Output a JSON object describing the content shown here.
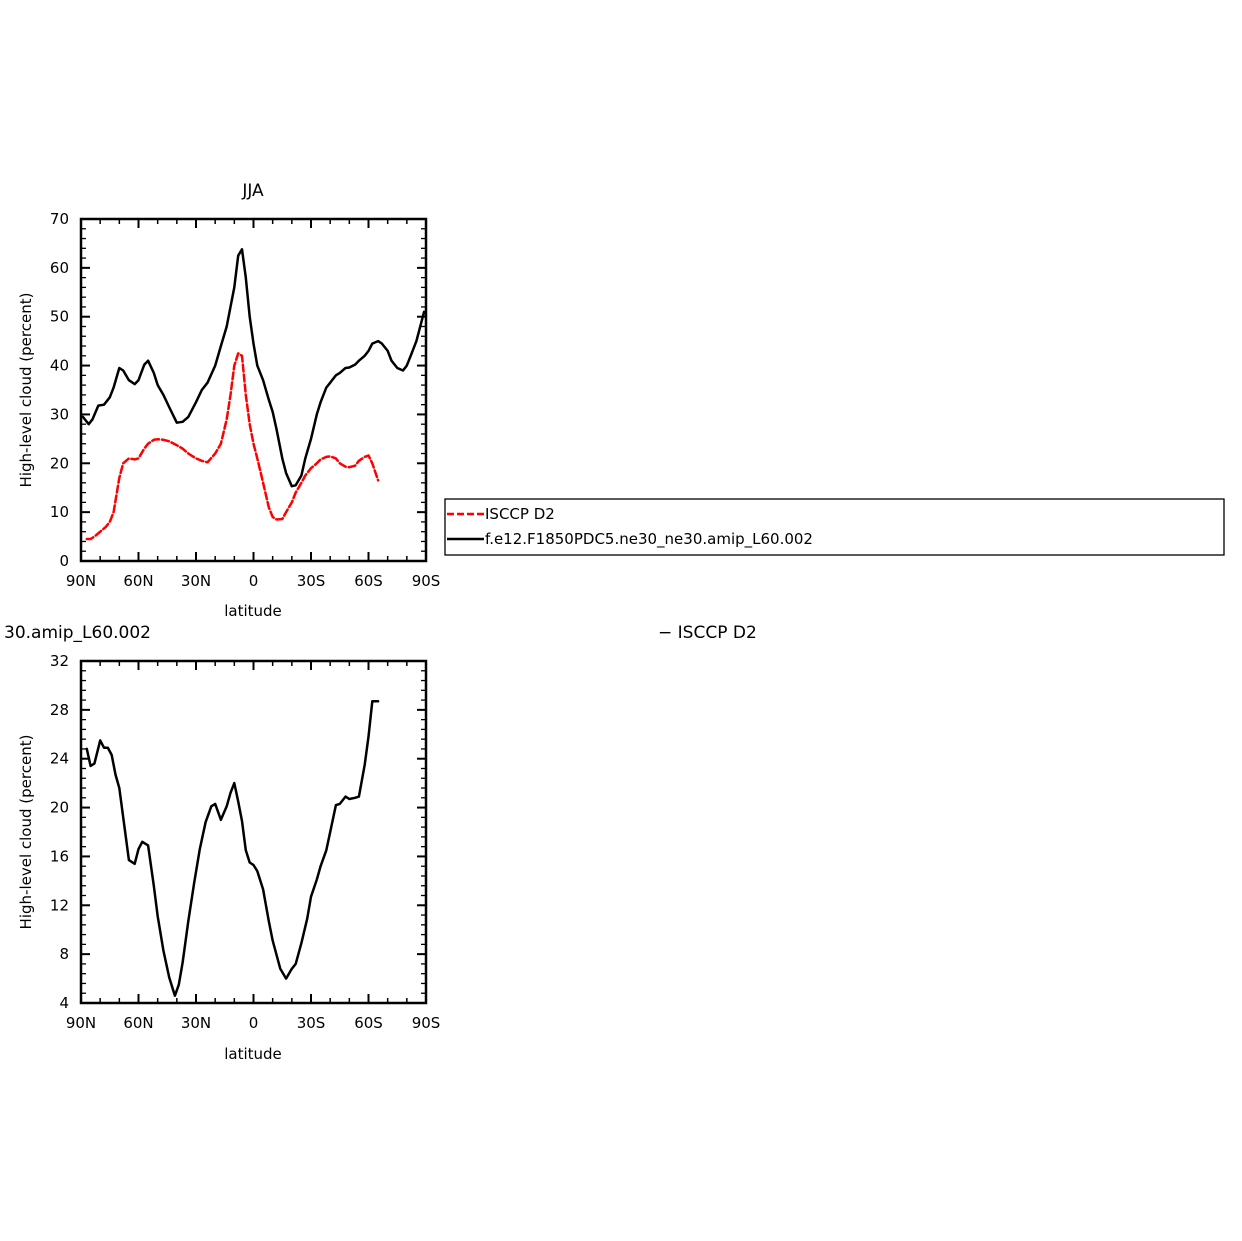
{
  "chart_data": [
    {
      "type": "line",
      "title": "JJA",
      "xlabel": "latitude",
      "ylabel": "High-level cloud (percent)",
      "xlim": [
        90,
        -90
      ],
      "ylim": [
        0,
        70
      ],
      "x_tick_values": [
        90,
        60,
        30,
        0,
        -30,
        -60,
        -90
      ],
      "x_tick_labels": [
        "90N",
        "60N",
        "30N",
        "0",
        "30S",
        "60S",
        "90S"
      ],
      "y_ticks": [
        0,
        10,
        20,
        30,
        40,
        50,
        60,
        70
      ],
      "legend_position": "right",
      "series": [
        {
          "name": "ISCCP D2",
          "color": "#ff0000",
          "style": "dashed",
          "x": [
            87,
            85,
            83,
            80,
            77,
            75,
            73,
            70,
            68,
            65,
            62,
            60,
            57,
            55,
            52,
            50,
            47,
            44,
            40,
            37,
            34,
            30,
            27,
            24,
            20,
            17,
            14,
            12,
            10,
            8,
            6,
            4,
            2,
            0,
            -2,
            -5,
            -8,
            -10,
            -12,
            -15,
            -17,
            -20,
            -22,
            -25,
            -27,
            -30,
            -33,
            -35,
            -38,
            -40,
            -43,
            -45,
            -48,
            -50,
            -53,
            -55,
            -58,
            -60,
            -62,
            -65
          ],
          "y": [
            4.5,
            4.5,
            5.0,
            6.0,
            7.0,
            8.0,
            10.0,
            17.0,
            20.0,
            21.0,
            20.8,
            21.0,
            23.0,
            24.0,
            24.8,
            24.9,
            24.8,
            24.5,
            23.7,
            23.0,
            22.0,
            21.0,
            20.5,
            20.2,
            22.0,
            24.0,
            29.0,
            34.0,
            40.0,
            42.5,
            42.0,
            34.0,
            28.0,
            24.0,
            21.0,
            16.0,
            11.0,
            9.0,
            8.5,
            8.6,
            10.0,
            12.0,
            14.0,
            16.0,
            17.5,
            19.0,
            20.0,
            20.8,
            21.3,
            21.4,
            21.0,
            20.0,
            19.3,
            19.2,
            19.5,
            20.5,
            21.3,
            21.6,
            20.0,
            16.5
          ]
        },
        {
          "name": "f.e12.F1850PDC5.ne30_ne30.amip_L60.002",
          "color": "#000000",
          "style": "solid",
          "x": [
            89,
            86,
            84,
            81,
            78,
            75,
            73,
            70,
            68,
            65,
            62,
            60,
            57,
            55,
            52,
            50,
            47,
            44,
            40,
            37,
            34,
            30,
            27,
            24,
            20,
            17,
            14,
            12,
            10,
            8,
            6,
            4,
            2,
            0,
            -2,
            -5,
            -8,
            -10,
            -12,
            -15,
            -17,
            -20,
            -22,
            -25,
            -27,
            -30,
            -33,
            -35,
            -38,
            -40,
            -43,
            -45,
            -48,
            -50,
            -53,
            -55,
            -58,
            -60,
            -62,
            -65,
            -67,
            -70,
            -72,
            -75,
            -78,
            -80,
            -82,
            -85,
            -89
          ],
          "y": [
            29.5,
            28.0,
            29.0,
            31.8,
            32.0,
            33.5,
            35.5,
            39.5,
            39.0,
            37.0,
            36.2,
            37.0,
            40.2,
            41.0,
            38.5,
            36.0,
            34.0,
            31.5,
            28.3,
            28.5,
            29.5,
            32.5,
            35.0,
            36.5,
            40.0,
            44.0,
            48.0,
            52.0,
            56.0,
            62.5,
            63.8,
            58.0,
            50.0,
            44.5,
            40.0,
            37.0,
            33.0,
            30.5,
            27.0,
            21.0,
            18.0,
            15.3,
            15.5,
            17.5,
            21.0,
            25.0,
            30.0,
            32.5,
            35.5,
            36.5,
            38.0,
            38.5,
            39.5,
            39.6,
            40.2,
            41.0,
            42.0,
            43.0,
            44.5,
            45.0,
            44.5,
            43.0,
            41.0,
            39.5,
            39.0,
            40.0,
            42.0,
            45.0,
            51.0
          ]
        }
      ]
    },
    {
      "type": "line",
      "title": "30.amip_L60.002",
      "title_right": "− ISCCP D2",
      "xlabel": "latitude",
      "ylabel": "High-level cloud (percent)",
      "xlim": [
        90,
        -90
      ],
      "ylim": [
        4,
        32
      ],
      "x_tick_values": [
        90,
        60,
        30,
        0,
        -30,
        -60,
        -90
      ],
      "x_tick_labels": [
        "90N",
        "60N",
        "30N",
        "0",
        "30S",
        "60S",
        "90S"
      ],
      "y_ticks": [
        4,
        8,
        12,
        16,
        20,
        24,
        28,
        32
      ],
      "series": [
        {
          "color": "#000000",
          "style": "solid",
          "x": [
            87,
            85,
            83,
            80,
            78,
            76,
            74,
            72,
            70,
            68,
            65,
            62,
            60,
            58,
            55,
            52,
            50,
            47,
            44,
            41,
            39,
            37,
            34,
            31,
            28,
            25,
            22,
            20,
            17,
            14,
            12,
            10,
            8,
            6,
            4,
            2,
            0,
            -2,
            -5,
            -8,
            -10,
            -14,
            -17,
            -20,
            -22,
            -25,
            -28,
            -30,
            -33,
            -35,
            -38,
            -40,
            -43,
            -45,
            -48,
            -50,
            -53,
            -55,
            -58,
            -60,
            -62,
            -65
          ],
          "y": [
            24.8,
            23.4,
            23.6,
            25.5,
            24.9,
            24.9,
            24.3,
            22.7,
            21.6,
            19.2,
            15.7,
            15.4,
            16.6,
            17.2,
            16.9,
            13.6,
            11.1,
            8.3,
            6.1,
            4.6,
            5.5,
            7.3,
            10.7,
            13.8,
            16.6,
            18.8,
            20.1,
            20.3,
            19.0,
            20.1,
            21.2,
            22.0,
            20.5,
            18.9,
            16.5,
            15.5,
            15.3,
            14.8,
            13.3,
            10.7,
            9.1,
            6.8,
            6.0,
            6.8,
            7.2,
            8.9,
            10.9,
            12.7,
            14.1,
            15.2,
            16.5,
            18.0,
            20.2,
            20.3,
            20.9,
            20.7,
            20.8,
            20.9,
            23.5,
            25.8,
            28.7,
            28.7
          ]
        }
      ]
    }
  ]
}
